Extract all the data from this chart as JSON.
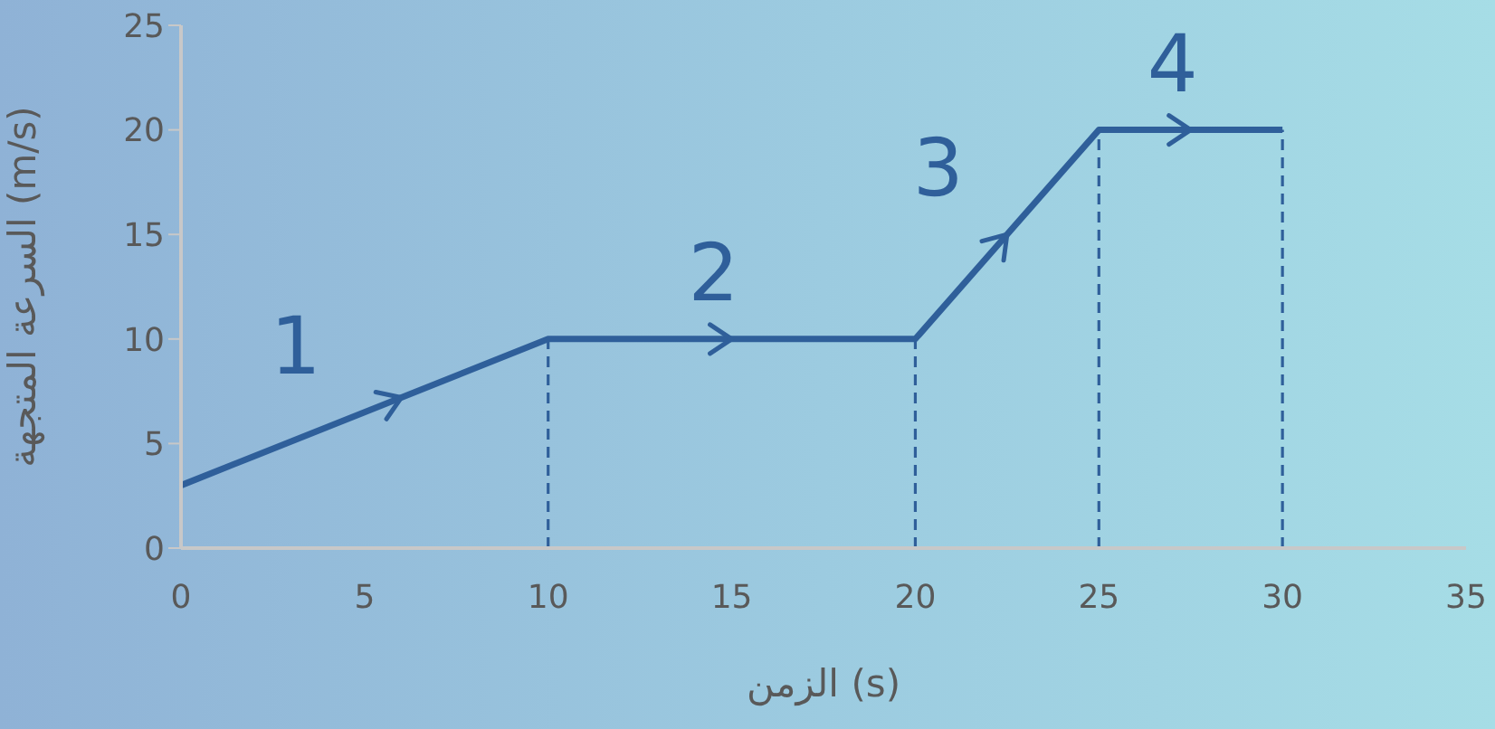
{
  "chart_data": {
    "type": "line",
    "xlabel": "الزمن (s)",
    "ylabel": "السرعة المتجهة (m/s)",
    "x": [
      0,
      10,
      20,
      25,
      30
    ],
    "series": [
      {
        "color": "#2f5f9a",
        "values": [
          3,
          10,
          10,
          20,
          20
        ]
      }
    ],
    "xlim": [
      0,
      35
    ],
    "xticks": [
      0,
      5,
      10,
      15,
      20,
      25,
      30,
      35
    ],
    "ylim": [
      0,
      25
    ],
    "yticks": [
      0,
      5,
      10,
      15,
      20,
      25
    ],
    "grid": false,
    "legend": false,
    "marker": "none",
    "line_style": "solid",
    "ref_lines": [
      {
        "axis": "x",
        "value": 10,
        "color": "#2f5f9a",
        "line_style": "dashed"
      },
      {
        "axis": "x",
        "value": 20,
        "color": "#2f5f9a",
        "line_style": "dashed"
      },
      {
        "axis": "x",
        "value": 25,
        "color": "#2f5f9a",
        "line_style": "dashed"
      },
      {
        "axis": "x",
        "value": 30,
        "color": "#2f5f9a",
        "line_style": "dashed"
      }
    ],
    "annotations": [
      "1",
      "2",
      "3",
      "4"
    ]
  }
}
